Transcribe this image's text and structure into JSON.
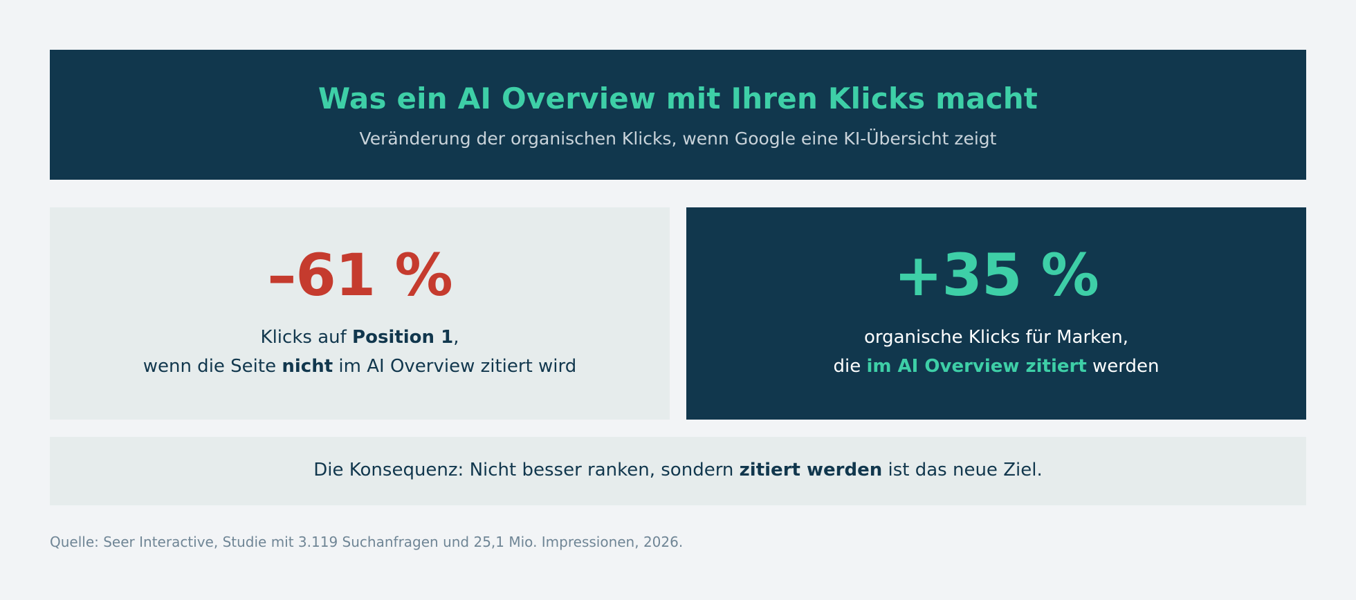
{
  "header": {
    "title": "Was ein AI Overview mit Ihren Klicks macht",
    "subtitle": "Veränderung der organischen Klicks, wenn Google eine KI-Übersicht zeigt"
  },
  "cards": {
    "left": {
      "stat": "–61 %",
      "line1_prefix": "Klicks auf ",
      "line1_bold": "Position 1",
      "line1_suffix": ",",
      "line2_prefix": "wenn die Seite ",
      "line2_bold": "nicht",
      "line2_suffix": " im AI Overview zitiert wird"
    },
    "right": {
      "stat": "+35 %",
      "line1": "organische Klicks für Marken,",
      "line2_prefix": "die ",
      "line2_accent": "im AI Overview zitiert",
      "line2_suffix": " werden"
    }
  },
  "banner": {
    "prefix": "Die Konsequenz: Nicht besser ranken, sondern ",
    "bold": "zitiert werden",
    "suffix": " ist das neue Ziel."
  },
  "source": "Quelle: Seer Interactive, Studie mit 3.119 Suchanfragen und 25,1 Mio. Impressionen, 2026.",
  "colors": {
    "navy": "#11374d",
    "accent_green": "#3ecfa7",
    "negative_red": "#c53b2e",
    "light_panel": "#e6ecec",
    "page_background": "#f2f4f6"
  }
}
